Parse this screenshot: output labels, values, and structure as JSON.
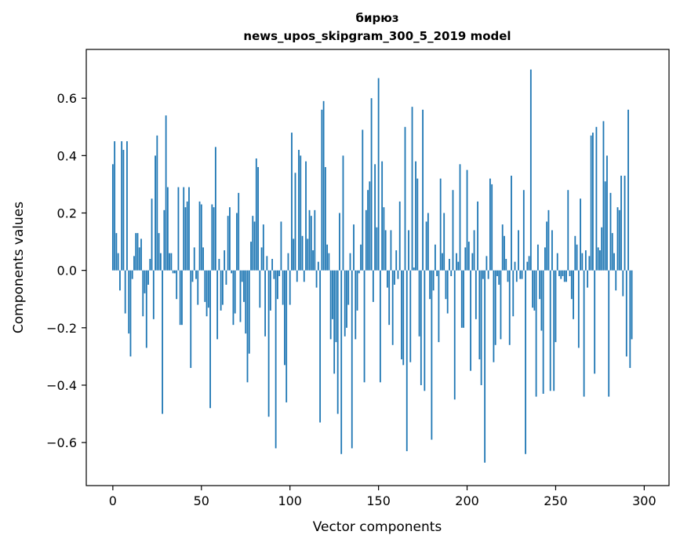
{
  "chart_data": {
    "type": "bar",
    "title_line1": "бирюз",
    "title_line2": "news_upos_skipgram_300_5_2019 model",
    "xlabel": "Vector components",
    "ylabel": "Components values",
    "xlim": [
      -15,
      314
    ],
    "ylim": [
      -0.75,
      0.77
    ],
    "xticks": [
      0,
      50,
      100,
      150,
      200,
      250,
      300
    ],
    "yticks": [
      -0.6,
      -0.4,
      -0.2,
      0.0,
      0.2,
      0.4,
      0.6
    ],
    "ytick_labels": [
      "−0.6",
      "−0.4",
      "−0.2",
      "0.0",
      "0.2",
      "0.4",
      "0.6"
    ],
    "grid": false,
    "bar_color": "#1f77b4",
    "values": [
      0.37,
      0.45,
      0.13,
      0.06,
      -0.07,
      0.45,
      0.42,
      -0.15,
      0.45,
      -0.22,
      -0.3,
      -0.03,
      0.05,
      0.13,
      0.13,
      0.08,
      0.11,
      -0.16,
      -0.08,
      -0.27,
      -0.05,
      0.04,
      0.25,
      -0.17,
      0.4,
      0.47,
      0.13,
      0.06,
      -0.5,
      0.21,
      0.54,
      0.29,
      0.06,
      0.06,
      -0.01,
      -0.01,
      -0.1,
      0.29,
      -0.19,
      -0.19,
      0.29,
      0.22,
      0.24,
      0.29,
      -0.34,
      -0.04,
      0.08,
      -0.03,
      -0.12,
      0.24,
      0.23,
      0.08,
      -0.11,
      -0.16,
      -0.13,
      -0.48,
      0.23,
      0.22,
      0.43,
      -0.24,
      0.04,
      -0.14,
      -0.12,
      0.07,
      -0.05,
      0.19,
      0.22,
      -0.01,
      -0.19,
      -0.15,
      0.2,
      0.27,
      -0.18,
      -0.04,
      -0.11,
      -0.22,
      -0.39,
      -0.29,
      0.1,
      0.19,
      0.17,
      0.39,
      0.36,
      -0.13,
      0.08,
      0.16,
      -0.23,
      0.05,
      -0.51,
      -0.14,
      0.04,
      -0.03,
      -0.62,
      -0.1,
      -0.02,
      0.17,
      -0.12,
      -0.33,
      -0.46,
      0.06,
      -0.12,
      0.48,
      0.11,
      0.34,
      -0.04,
      0.42,
      0.4,
      0.12,
      -0.04,
      0.38,
      0.11,
      0.21,
      0.19,
      0.07,
      0.21,
      -0.06,
      0.03,
      -0.53,
      0.56,
      0.59,
      0.36,
      0.09,
      0.06,
      -0.24,
      -0.17,
      -0.36,
      -0.25,
      -0.5,
      0.2,
      -0.64,
      0.4,
      -0.23,
      -0.2,
      -0.12,
      0.06,
      -0.62,
      0.16,
      -0.24,
      -0.14,
      -0.01,
      0.09,
      0.49,
      -0.39,
      0.21,
      0.28,
      0.31,
      0.6,
      -0.11,
      0.37,
      0.15,
      0.67,
      -0.39,
      0.38,
      0.22,
      0.14,
      -0.06,
      -0.19,
      0.14,
      -0.26,
      -0.05,
      0.07,
      -0.03,
      0.24,
      -0.31,
      -0.33,
      0.5,
      -0.63,
      0.14,
      -0.32,
      0.57,
      0.01,
      0.38,
      0.32,
      -0.23,
      -0.4,
      0.56,
      -0.42,
      0.17,
      0.2,
      -0.1,
      -0.59,
      -0.07,
      0.09,
      -0.02,
      -0.25,
      0.32,
      0.06,
      0.2,
      -0.1,
      -0.15,
      0.04,
      -0.02,
      0.28,
      -0.45,
      0.06,
      0.03,
      0.37,
      -0.2,
      -0.2,
      0.08,
      0.35,
      0.1,
      -0.35,
      0.06,
      0.14,
      -0.17,
      0.24,
      -0.31,
      -0.4,
      -0.03,
      -0.67,
      0.05,
      -0.03,
      0.32,
      0.3,
      -0.32,
      -0.26,
      -0.02,
      -0.05,
      -0.24,
      0.16,
      0.12,
      0.04,
      -0.04,
      -0.26,
      0.33,
      -0.16,
      0.03,
      -0.04,
      0.14,
      -0.03,
      -0.03,
      0.28,
      -0.64,
      0.03,
      0.05,
      0.7,
      -0.13,
      -0.14,
      -0.44,
      0.09,
      -0.1,
      -0.21,
      -0.43,
      0.08,
      0.17,
      0.21,
      -0.42,
      0.14,
      -0.42,
      -0.25,
      0.06,
      -0.02,
      -0.03,
      -0.02,
      -0.04,
      -0.04,
      0.28,
      -0.02,
      -0.1,
      -0.17,
      0.12,
      0.09,
      -0.27,
      0.25,
      0.06,
      -0.44,
      0.07,
      -0.06,
      0.05,
      0.47,
      0.48,
      -0.36,
      0.5,
      0.08,
      0.07,
      0.15,
      0.52,
      0.31,
      0.4,
      -0.44,
      0.27,
      0.13,
      0.06,
      -0.07,
      0.22,
      0.21,
      0.33,
      -0.09,
      0.33,
      -0.3,
      0.56,
      -0.34,
      -0.24
    ]
  }
}
